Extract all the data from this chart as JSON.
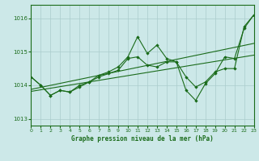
{
  "title": "Graphe pression niveau de la mer (hPa)",
  "bg_color": "#cce8e8",
  "grid_color": "#aacccc",
  "line_color": "#1a6b1a",
  "x_min": 0,
  "x_max": 23,
  "y_min": 1012.8,
  "y_max": 1016.4,
  "yticks": [
    1013,
    1014,
    1015,
    1016
  ],
  "xticks": [
    0,
    1,
    2,
    3,
    4,
    5,
    6,
    7,
    8,
    9,
    10,
    11,
    12,
    13,
    14,
    15,
    16,
    17,
    18,
    19,
    20,
    21,
    22,
    23
  ],
  "series_main_x": [
    0,
    1,
    2,
    3,
    4,
    5,
    6,
    7,
    8,
    9,
    10,
    11,
    12,
    13,
    14,
    15,
    16,
    17,
    18,
    19,
    20,
    21,
    22,
    23
  ],
  "series_main_y": [
    1014.25,
    1014.0,
    1013.7,
    1013.85,
    1013.8,
    1013.95,
    1014.1,
    1014.25,
    1014.35,
    1014.45,
    1014.8,
    1014.85,
    1014.6,
    1014.55,
    1014.7,
    1014.7,
    1013.85,
    1013.55,
    1014.05,
    1014.35,
    1014.85,
    1014.8,
    1015.7,
    1016.1
  ],
  "series_high_x": [
    0,
    1,
    2,
    3,
    4,
    5,
    6,
    7,
    8,
    9,
    10,
    11,
    12,
    13,
    14,
    15,
    16,
    17,
    18,
    19,
    20,
    21,
    22,
    23
  ],
  "series_high_y": [
    1014.25,
    1014.0,
    1013.7,
    1013.85,
    1013.8,
    1014.0,
    1014.1,
    1014.3,
    1014.4,
    1014.55,
    1014.85,
    1015.45,
    1014.95,
    1015.2,
    1014.8,
    1014.7,
    1014.25,
    1013.95,
    1014.1,
    1014.4,
    1014.5,
    1014.5,
    1015.75,
    1016.1
  ],
  "trendline_x": [
    0,
    23
  ],
  "trendline_y": [
    1013.88,
    1015.25
  ],
  "trendline2_x": [
    0,
    23
  ],
  "trendline2_y": [
    1013.82,
    1014.9
  ]
}
